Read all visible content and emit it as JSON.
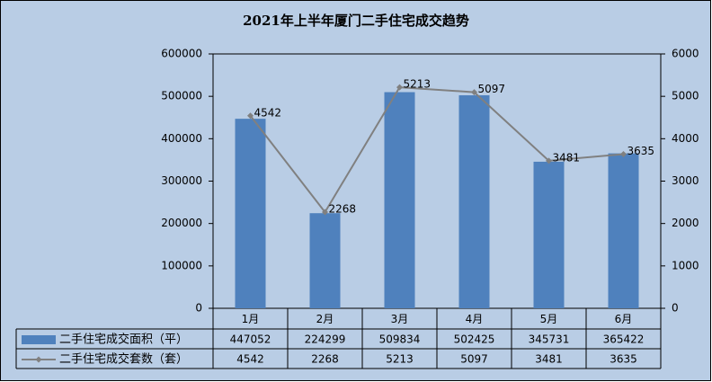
{
  "chart_data": {
    "type": "bar",
    "title": "2021年上半年厦门二手住宅成交趋势",
    "categories": [
      "1月",
      "2月",
      "3月",
      "4月",
      "5月",
      "6月"
    ],
    "series": [
      {
        "name": "二手住宅成交面积（平）",
        "type": "bar",
        "color": "#4f81bd",
        "values": [
          447052,
          224299,
          509834,
          502425,
          345731,
          365422
        ]
      },
      {
        "name": "二手住宅成交套数（套）",
        "type": "line",
        "axis": "y2",
        "color": "#808080",
        "values": [
          4542,
          2268,
          5213,
          5097,
          3481,
          3635
        ]
      }
    ],
    "ylim": [
      0,
      600000
    ],
    "yticks": [
      0,
      100000,
      200000,
      300000,
      400000,
      500000,
      600000
    ],
    "y2lim": [
      0,
      6000
    ],
    "y2ticks": [
      0,
      1000,
      2000,
      3000,
      4000,
      5000,
      6000
    ],
    "data_table": true
  }
}
